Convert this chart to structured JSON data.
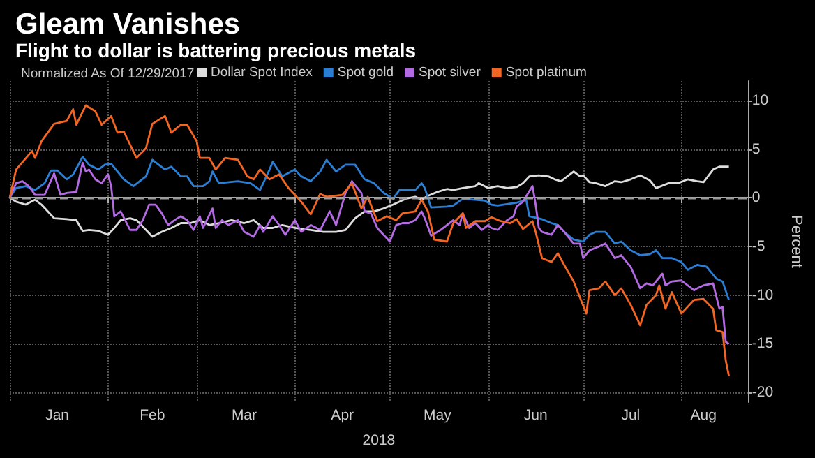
{
  "chart_data": {
    "type": "line",
    "title": "Gleam Vanishes",
    "subtitle": "Flight to dollar is battering precious metals",
    "legend_title": "Normalized As Of 12/29/2017",
    "xlabel": "2018",
    "ylabel": "Percent",
    "xlim": [
      "2018-01-01",
      "2018-08-22"
    ],
    "xticks": [
      {
        "value": "2018-01-01",
        "label": null
      },
      {
        "value": "2018-01-16",
        "label": "Jan"
      },
      {
        "value": "2018-02-01",
        "label": null
      },
      {
        "value": "2018-02-15",
        "label": "Feb"
      },
      {
        "value": "2018-03-01",
        "label": null
      },
      {
        "value": "2018-03-16",
        "label": "Mar"
      },
      {
        "value": "2018-04-01",
        "label": null
      },
      {
        "value": "2018-04-16",
        "label": "Apr"
      },
      {
        "value": "2018-05-01",
        "label": null
      },
      {
        "value": "2018-05-16",
        "label": "May"
      },
      {
        "value": "2018-06-01",
        "label": null
      },
      {
        "value": "2018-06-16",
        "label": "Jun"
      },
      {
        "value": "2018-07-01",
        "label": null
      },
      {
        "value": "2018-07-16",
        "label": "Jul"
      },
      {
        "value": "2018-08-01",
        "label": null
      },
      {
        "value": "2018-08-08",
        "label": "Aug"
      }
    ],
    "ylim": [
      -21,
      12
    ],
    "yticks": [
      -20,
      -15,
      -10,
      -5,
      0,
      5,
      10
    ],
    "grid": true,
    "legend": "top left",
    "ref_lines": [
      {
        "axis": "y",
        "value": 0,
        "label": null,
        "color": "#999999",
        "line_style": "dashed"
      }
    ],
    "series": [
      {
        "name": "Dollar Spot Index",
        "color": "#dddddd",
        "x": [
          "2018-01-01",
          "2018-01-03",
          "2018-01-06",
          "2018-01-09",
          "2018-01-11",
          "2018-01-15",
          "2018-01-19",
          "2018-01-22",
          "2018-01-24",
          "2018-01-26",
          "2018-01-29",
          "2018-02-01",
          "2018-02-03",
          "2018-02-05",
          "2018-02-08",
          "2018-02-10",
          "2018-02-13",
          "2018-02-15",
          "2018-02-18",
          "2018-02-21",
          "2018-02-24",
          "2018-02-27",
          "2018-03-02",
          "2018-03-05",
          "2018-03-08",
          "2018-03-12",
          "2018-03-16",
          "2018-03-19",
          "2018-03-22",
          "2018-03-25",
          "2018-03-28",
          "2018-04-01",
          "2018-04-06",
          "2018-04-10",
          "2018-04-14",
          "2018-04-17",
          "2018-04-20",
          "2018-04-23",
          "2018-04-26",
          "2018-04-29",
          "2018-05-02",
          "2018-05-06",
          "2018-05-09",
          "2018-05-11",
          "2018-05-13",
          "2018-05-16",
          "2018-05-19",
          "2018-05-21",
          "2018-05-24",
          "2018-05-28",
          "2018-05-29",
          "2018-06-01",
          "2018-06-04",
          "2018-06-07",
          "2018-06-10",
          "2018-06-12",
          "2018-06-14",
          "2018-06-17",
          "2018-06-20",
          "2018-06-22",
          "2018-06-24",
          "2018-06-26",
          "2018-06-28",
          "2018-06-30",
          "2018-07-01",
          "2018-07-03",
          "2018-07-05",
          "2018-07-08",
          "2018-07-11",
          "2018-07-13",
          "2018-07-16",
          "2018-07-19",
          "2018-07-22",
          "2018-07-24",
          "2018-07-28",
          "2018-07-31",
          "2018-08-03",
          "2018-08-06",
          "2018-08-08",
          "2018-08-11",
          "2018-08-13",
          "2018-08-16"
        ],
        "values": [
          0,
          -0.4,
          -0.7,
          -0.2,
          -0.7,
          -2.1,
          -2.2,
          -2.3,
          -3.4,
          -3.3,
          -3.4,
          -3.8,
          -3.1,
          -2.3,
          -2.1,
          -2.3,
          -3.3,
          -4.0,
          -3.5,
          -3.1,
          -2.6,
          -2.6,
          -2.3,
          -2.8,
          -2.6,
          -2.3,
          -2.6,
          -2.3,
          -3.1,
          -3.1,
          -2.8,
          -3.1,
          -3.3,
          -3.5,
          -3.5,
          -3.3,
          -2.1,
          -1.4,
          -1.4,
          -1.1,
          -0.7,
          -0.1,
          0.1,
          -0.2,
          0.2,
          0.6,
          0.9,
          0.8,
          1.0,
          1.2,
          1.5,
          1.0,
          1.2,
          1.0,
          1.1,
          1.5,
          2.2,
          2.3,
          2.2,
          1.9,
          1.7,
          2.2,
          2.7,
          2.2,
          2.3,
          1.6,
          1.5,
          1.2,
          1.7,
          1.6,
          1.9,
          2.3,
          1.8,
          1.0,
          1.5,
          1.5,
          1.9,
          1.7,
          1.6,
          2.9,
          3.2,
          3.2
        ]
      },
      {
        "name": "Spot gold",
        "color": "#2a7fd4",
        "x": [
          "2018-01-01",
          "2018-01-03",
          "2018-01-06",
          "2018-01-09",
          "2018-01-12",
          "2018-01-14",
          "2018-01-16",
          "2018-01-19",
          "2018-01-21",
          "2018-01-24",
          "2018-01-26",
          "2018-01-29",
          "2018-01-31",
          "2018-02-02",
          "2018-02-04",
          "2018-02-06",
          "2018-02-09",
          "2018-02-13",
          "2018-02-15",
          "2018-02-17",
          "2018-02-19",
          "2018-02-21",
          "2018-02-24",
          "2018-02-26",
          "2018-02-28",
          "2018-03-03",
          "2018-03-05",
          "2018-03-06",
          "2018-03-08",
          "2018-03-14",
          "2018-03-18",
          "2018-03-21",
          "2018-03-24",
          "2018-03-25",
          "2018-03-28",
          "2018-04-01",
          "2018-04-03",
          "2018-04-06",
          "2018-04-09",
          "2018-04-11",
          "2018-04-14",
          "2018-04-17",
          "2018-04-20",
          "2018-04-23",
          "2018-04-26",
          "2018-04-29",
          "2018-05-02",
          "2018-05-04",
          "2018-05-07",
          "2018-05-09",
          "2018-05-11",
          "2018-05-12",
          "2018-05-14",
          "2018-05-19",
          "2018-05-21",
          "2018-05-24",
          "2018-05-28",
          "2018-05-31",
          "2018-06-02",
          "2018-06-04",
          "2018-06-08",
          "2018-06-10",
          "2018-06-13",
          "2018-06-14",
          "2018-06-18",
          "2018-06-21",
          "2018-06-23",
          "2018-06-25",
          "2018-06-28",
          "2018-07-01",
          "2018-07-03",
          "2018-07-05",
          "2018-07-08",
          "2018-07-11",
          "2018-07-13",
          "2018-07-16",
          "2018-07-19",
          "2018-07-22",
          "2018-07-24",
          "2018-07-26",
          "2018-07-29",
          "2018-08-01",
          "2018-08-03",
          "2018-08-06",
          "2018-08-09",
          "2018-08-12",
          "2018-08-14",
          "2018-08-16"
        ],
        "values": [
          0,
          1.0,
          1.2,
          0.8,
          1.5,
          2.8,
          2.8,
          1.9,
          2.4,
          4.2,
          3.4,
          2.9,
          3.4,
          3.5,
          2.7,
          1.9,
          1.2,
          2.2,
          3.9,
          3.4,
          2.9,
          3.2,
          2.2,
          2.2,
          1.2,
          1.2,
          1.7,
          2.7,
          1.5,
          1.7,
          1.5,
          0.8,
          2.9,
          3.7,
          2.2,
          2.9,
          2.2,
          1.7,
          2.7,
          3.9,
          2.7,
          3.4,
          3.4,
          1.9,
          1.5,
          0.5,
          -0.1,
          0.8,
          0.8,
          0.8,
          1.5,
          1.0,
          -1.0,
          -0.9,
          -0.8,
          -0.1,
          -0.2,
          -0.3,
          -0.7,
          -0.8,
          -0.6,
          -0.5,
          -0.2,
          -1.9,
          -2.2,
          -2.6,
          -2.8,
          -3.5,
          -4.3,
          -4.5,
          -3.8,
          -3.5,
          -3.5,
          -4.7,
          -4.5,
          -5.4,
          -5.9,
          -5.8,
          -5.4,
          -6.2,
          -6.2,
          -6.6,
          -7.4,
          -6.9,
          -7.1,
          -8.3,
          -8.6,
          -10.5
        ]
      },
      {
        "name": "Spot silver",
        "color": "#b36ae2",
        "x": [
          "2018-01-01",
          "2018-01-03",
          "2018-01-05",
          "2018-01-07",
          "2018-01-09",
          "2018-01-12",
          "2018-01-15",
          "2018-01-17",
          "2018-01-19",
          "2018-01-22",
          "2018-01-24",
          "2018-01-25",
          "2018-01-26",
          "2018-01-28",
          "2018-01-30",
          "2018-02-01",
          "2018-02-02",
          "2018-02-03",
          "2018-02-05",
          "2018-02-08",
          "2018-02-10",
          "2018-02-12",
          "2018-02-14",
          "2018-02-16",
          "2018-02-18",
          "2018-02-20",
          "2018-02-22",
          "2018-02-24",
          "2018-02-26",
          "2018-02-28",
          "2018-03-02",
          "2018-03-03",
          "2018-03-06",
          "2018-03-07",
          "2018-03-09",
          "2018-03-11",
          "2018-03-14",
          "2018-03-16",
          "2018-03-19",
          "2018-03-21",
          "2018-03-22",
          "2018-03-25",
          "2018-03-27",
          "2018-03-29",
          "2018-04-01",
          "2018-04-03",
          "2018-04-06",
          "2018-04-09",
          "2018-04-12",
          "2018-04-14",
          "2018-04-17",
          "2018-04-19",
          "2018-04-22",
          "2018-04-23",
          "2018-04-25",
          "2018-04-27",
          "2018-05-01",
          "2018-05-03",
          "2018-05-05",
          "2018-05-07",
          "2018-05-09",
          "2018-05-11",
          "2018-05-12",
          "2018-05-14",
          "2018-05-17",
          "2018-05-21",
          "2018-05-23",
          "2018-05-24",
          "2018-05-26",
          "2018-05-28",
          "2018-05-30",
          "2018-06-01",
          "2018-06-02",
          "2018-06-04",
          "2018-06-07",
          "2018-06-09",
          "2018-06-10",
          "2018-06-12",
          "2018-06-15",
          "2018-06-16",
          "2018-06-17",
          "2018-06-18",
          "2018-06-21",
          "2018-06-23",
          "2018-06-25",
          "2018-06-28",
          "2018-06-30",
          "2018-07-01",
          "2018-07-03",
          "2018-07-06",
          "2018-07-08",
          "2018-07-11",
          "2018-07-13",
          "2018-07-16",
          "2018-07-19",
          "2018-07-21",
          "2018-07-23",
          "2018-07-26",
          "2018-07-27",
          "2018-07-29",
          "2018-08-01",
          "2018-08-05",
          "2018-08-06",
          "2018-08-08",
          "2018-08-11",
          "2018-08-13",
          "2018-08-14",
          "2018-08-15",
          "2018-08-16"
        ],
        "values": [
          0,
          1.5,
          1.7,
          1.2,
          0.3,
          0.3,
          2.5,
          0.3,
          0.5,
          0.6,
          3.6,
          2.7,
          2.9,
          1.9,
          1.5,
          2.4,
          1.2,
          -1.9,
          -1.4,
          -3.3,
          -3.3,
          -2.3,
          -0.7,
          -0.7,
          -1.6,
          -2.8,
          -2.3,
          -1.9,
          -2.3,
          -3.3,
          -1.9,
          -3.1,
          -1.1,
          -3.1,
          -2.3,
          -2.8,
          -2.3,
          -3.5,
          -4.0,
          -2.8,
          -3.5,
          -1.9,
          -2.8,
          -3.8,
          -2.3,
          -3.5,
          -2.8,
          -3.3,
          -1.4,
          -2.8,
          0.5,
          1.7,
          0.5,
          -1.4,
          -1.6,
          -3.1,
          -4.5,
          -2.8,
          -2.6,
          -2.6,
          -2.3,
          -1.4,
          -2.1,
          -3.9,
          -3.3,
          -2.3,
          -2.8,
          -1.6,
          -3.1,
          -2.6,
          -3.3,
          -2.8,
          -3.1,
          -3.3,
          -2.3,
          -1.9,
          -0.9,
          -0.4,
          1.2,
          -0.7,
          -3.1,
          -3.5,
          -3.8,
          -2.8,
          -3.5,
          -4.7,
          -4.7,
          -6.2,
          -5.4,
          -5.0,
          -4.7,
          -6.2,
          -5.9,
          -7.1,
          -9.3,
          -8.8,
          -9.0,
          -7.8,
          -9.0,
          -8.6,
          -8.5,
          -9.5,
          -9.3,
          -9.0,
          -8.8,
          -11.4,
          -11.2,
          -14.8,
          -15.0
        ]
      },
      {
        "name": "Spot platinum",
        "color": "#f26522",
        "x": [
          "2018-01-01",
          "2018-01-03",
          "2018-01-08",
          "2018-01-09",
          "2018-01-11",
          "2018-01-15",
          "2018-01-19",
          "2018-01-21",
          "2018-01-22",
          "2018-01-25",
          "2018-01-28",
          "2018-01-30",
          "2018-02-02",
          "2018-02-04",
          "2018-02-06",
          "2018-02-10",
          "2018-02-13",
          "2018-02-15",
          "2018-02-19",
          "2018-02-21",
          "2018-02-24",
          "2018-02-26",
          "2018-03-01",
          "2018-03-02",
          "2018-03-05",
          "2018-03-07",
          "2018-03-10",
          "2018-03-14",
          "2018-03-17",
          "2018-03-19",
          "2018-03-21",
          "2018-03-24",
          "2018-03-27",
          "2018-03-30",
          "2018-04-03",
          "2018-04-06",
          "2018-04-09",
          "2018-04-11",
          "2018-04-16",
          "2018-04-19",
          "2018-04-22",
          "2018-04-24",
          "2018-04-27",
          "2018-04-30",
          "2018-05-03",
          "2018-05-05",
          "2018-05-09",
          "2018-05-11",
          "2018-05-13",
          "2018-05-15",
          "2018-05-19",
          "2018-05-21",
          "2018-05-24",
          "2018-05-25",
          "2018-05-28",
          "2018-05-31",
          "2018-06-02",
          "2018-06-05",
          "2018-06-08",
          "2018-06-10",
          "2018-06-12",
          "2018-06-15",
          "2018-06-16",
          "2018-06-18",
          "2018-06-21",
          "2018-06-23",
          "2018-06-25",
          "2018-06-28",
          "2018-07-02",
          "2018-07-03",
          "2018-07-06",
          "2018-07-08",
          "2018-07-11",
          "2018-07-13",
          "2018-07-16",
          "2018-07-19",
          "2018-07-21",
          "2018-07-24",
          "2018-07-25",
          "2018-07-27",
          "2018-07-29",
          "2018-08-01",
          "2018-08-05",
          "2018-08-08",
          "2018-08-11",
          "2018-08-12",
          "2018-08-14",
          "2018-08-15",
          "2018-08-16"
        ],
        "values": [
          0,
          2.9,
          4.8,
          4.1,
          5.8,
          7.6,
          7.9,
          9.1,
          7.5,
          9.5,
          8.9,
          7.5,
          8.4,
          6.7,
          6.8,
          4.1,
          5.1,
          7.6,
          8.4,
          6.7,
          7.5,
          7.5,
          5.8,
          4.1,
          4.1,
          2.9,
          4.1,
          3.9,
          2.2,
          1.9,
          2.9,
          1.9,
          2.4,
          1.0,
          -0.4,
          -1.7,
          0.4,
          0.1,
          0.3,
          1.5,
          -1.1,
          0.1,
          -2.4,
          -1.9,
          -2.3,
          -1.6,
          -1.4,
          -0.2,
          -1.4,
          -4.3,
          -4.5,
          -2.6,
          -1.6,
          -3.1,
          -2.4,
          -2.4,
          -2.0,
          -2.4,
          -2.6,
          -2.2,
          -3.2,
          -2.4,
          -3.5,
          -6.2,
          -6.6,
          -5.7,
          -6.9,
          -8.6,
          -11.9,
          -9.5,
          -9.3,
          -8.6,
          -10.0,
          -9.3,
          -11.0,
          -13.1,
          -11.0,
          -10.0,
          -9.0,
          -11.4,
          -9.7,
          -11.9,
          -10.5,
          -10.4,
          -11.4,
          -13.6,
          -13.8,
          -16.7,
          -18.3
        ]
      }
    ]
  }
}
